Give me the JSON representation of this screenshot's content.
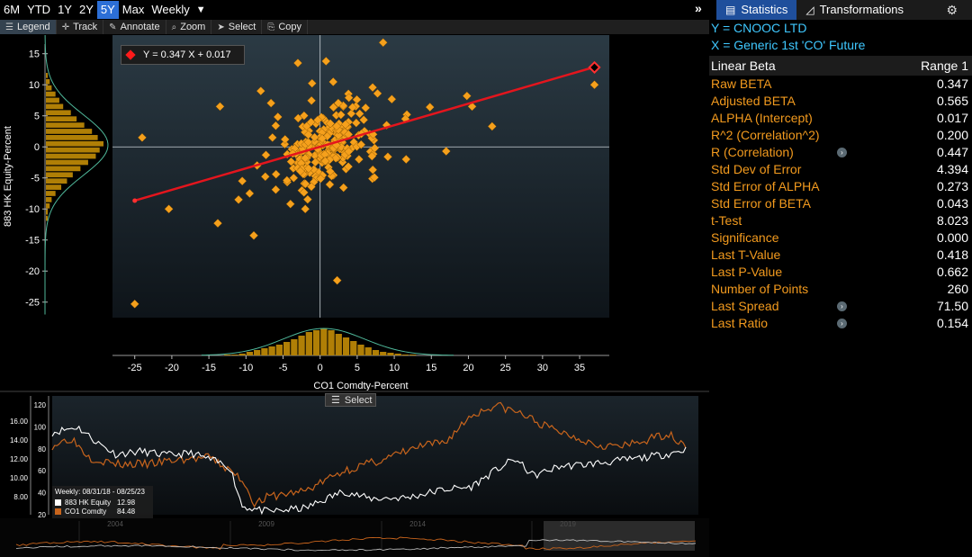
{
  "period_bar": {
    "items": [
      "6M",
      "YTD",
      "1Y",
      "2Y",
      "5Y",
      "Max",
      "Weekly"
    ],
    "active": "5Y",
    "dropdown_arrow": "▼"
  },
  "collapse_label": "»",
  "tool_bar": {
    "legend": "Legend",
    "track": "Track",
    "annotate": "Annotate",
    "zoom": "Zoom",
    "select": "Select",
    "copy": "Copy"
  },
  "right_tabs": {
    "statistics": "Statistics",
    "transformations": "Transformations"
  },
  "stats": {
    "y_label": "Y = CNOOC LTD",
    "x_label": "X = Generic 1st 'CO' Future",
    "header_left": "Linear Beta",
    "header_right": "Range 1",
    "rows": [
      {
        "k": "Raw BETA",
        "v": "0.347"
      },
      {
        "k": "Adjusted BETA",
        "v": "0.565"
      },
      {
        "k": "ALPHA (Intercept)",
        "v": "0.017"
      },
      {
        "k": "R^2 (Correlation^2)",
        "v": "0.200"
      },
      {
        "k": "R (Correlation)",
        "v": "0.447",
        "btn": true
      },
      {
        "k": "Std Dev of Error",
        "v": "4.394"
      },
      {
        "k": "Std Error of ALPHA",
        "v": "0.273"
      },
      {
        "k": "Std Error of BETA",
        "v": "0.043"
      },
      {
        "k": "t-Test",
        "v": "8.023"
      },
      {
        "k": "Significance",
        "v": "0.000"
      },
      {
        "k": "Last T-Value",
        "v": "0.418"
      },
      {
        "k": "Last P-Value",
        "v": "0.662"
      },
      {
        "k": "Number of Points",
        "v": "260"
      },
      {
        "k": "Last Spread",
        "v": "71.50",
        "btn": true
      },
      {
        "k": "Last Ratio",
        "v": "0.154",
        "btn": true
      }
    ]
  },
  "equation": "Y = 0.347 X + 0.017",
  "x_axis_title": "CO1 Comdty-Percent",
  "y_axis_title": "883 HK Equity-Percent",
  "colors": {
    "points": "#f5a01c",
    "regression": "#e4151d",
    "bars": "#b07f06",
    "brent": "#c8641c",
    "cnooc": "#ffffff",
    "accent": "#2c6fd6",
    "stats_key": "#f29a1e",
    "fit_curve": "#4fb89a"
  },
  "ts_panel": {
    "select_label": "Select",
    "legend_title": "Weekly: 08/31/18 - 08/25/23",
    "legend": [
      {
        "name": "883 HK Equity",
        "value": "12.98",
        "color": "#ffffff"
      },
      {
        "name": "CO1 Comdty",
        "value": "84.48",
        "color": "#c8641c"
      }
    ],
    "left_ticks": [
      "16.00",
      "14.00",
      "12.00",
      "10.00",
      "8.00"
    ],
    "right_ticks": [
      "120",
      "100",
      "80",
      "60",
      "40",
      "20"
    ],
    "nav_years": [
      "2004",
      "2009",
      "2014",
      "2019"
    ]
  },
  "chart_data": {
    "type": "scatter",
    "title": "",
    "xlabel": "CO1 Comdty-Percent",
    "ylabel": "883 HK Equity-Percent",
    "xlim": [
      -28,
      39
    ],
    "ylim": [
      -27.5,
      18
    ],
    "x_ticks": [
      -25,
      -20,
      -15,
      -10,
      -5,
      0,
      5,
      10,
      15,
      20,
      25,
      30,
      35
    ],
    "y_ticks": [
      15,
      10,
      5,
      0,
      -5,
      -10,
      -15,
      -20,
      -25
    ],
    "regression": {
      "slope": 0.347,
      "intercept": 0.017,
      "x_range": [
        -25,
        37
      ]
    },
    "labeled_points": [
      [
        -25,
        -8.7
      ],
      [
        37,
        12.8
      ]
    ],
    "outliers": [
      [
        -25,
        -25.3
      ],
      [
        -24,
        1.5
      ],
      [
        -20.4,
        -10
      ],
      [
        -13.5,
        6.5
      ],
      [
        -13.8,
        -12.3
      ],
      [
        -10.5,
        -5.5
      ],
      [
        -11,
        -8.5
      ],
      [
        -8.5,
        -3
      ],
      [
        -8,
        9
      ],
      [
        -3,
        13.5
      ],
      [
        0.8,
        13.8
      ],
      [
        8.5,
        16.8
      ],
      [
        2.3,
        -21.5
      ],
      [
        20.5,
        6.5
      ],
      [
        23.2,
        3.3
      ],
      [
        37,
        10
      ],
      [
        19.8,
        8.2
      ],
      [
        17,
        -0.7
      ],
      [
        11.7,
        5.2
      ],
      [
        11.5,
        4.5
      ],
      [
        11.6,
        -2
      ],
      [
        7,
        -1.5
      ],
      [
        -2,
        -10
      ],
      [
        -4,
        -9.2
      ],
      [
        -9.5,
        -7.5
      ]
    ],
    "x_hist": {
      "bin_start": -13,
      "bin_width": 1,
      "counts": [
        1,
        1,
        2,
        4,
        6,
        8,
        10,
        12,
        15,
        18,
        22,
        26,
        28,
        30,
        28,
        24,
        20,
        16,
        12,
        9,
        6,
        4,
        3,
        2,
        1,
        1
      ]
    },
    "y_hist": {
      "bin_start": -12,
      "bin_width": 1,
      "counts": [
        1,
        1,
        2,
        3,
        5,
        8,
        11,
        14,
        18,
        22,
        26,
        28,
        30,
        27,
        24,
        20,
        16,
        13,
        9,
        7,
        5,
        3,
        2,
        1
      ]
    }
  }
}
